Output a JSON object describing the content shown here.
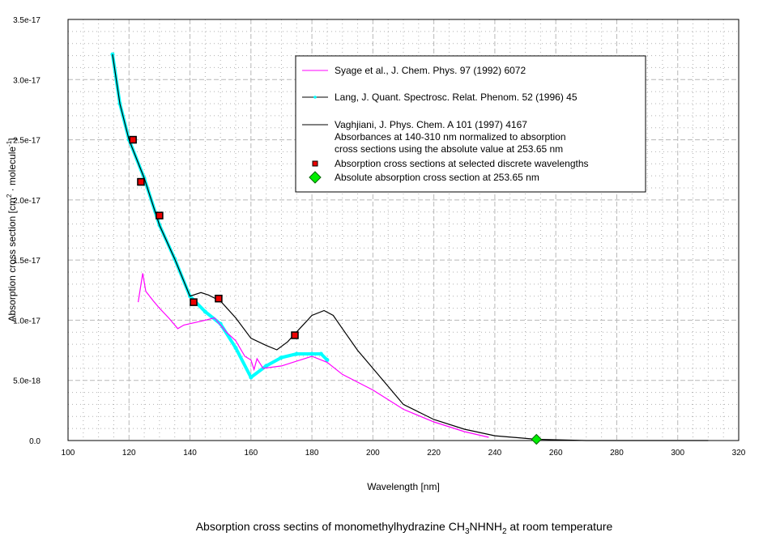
{
  "chart_data": {
    "type": "line",
    "title_parts": [
      "Absorption cross sectins of monomethylhydrazine CH",
      "3",
      "NHNH",
      "2",
      " at room temperature"
    ],
    "xlabel": "Wavelength [nm]",
    "ylabel_parts": [
      "Absorption cross section [cm",
      "2",
      " · molecule",
      "-1",
      "]"
    ],
    "xlim": [
      100,
      320
    ],
    "ylim": [
      0,
      3.5e-17
    ],
    "x_ticks": [
      100,
      120,
      140,
      160,
      180,
      200,
      220,
      240,
      260,
      280,
      300,
      320
    ],
    "y_ticks": [
      0,
      5e-18,
      1e-17,
      1.5e-17,
      2e-17,
      2.5e-17,
      3e-17,
      3.5e-17
    ],
    "y_tick_labels": [
      "0.0",
      "5.0e-18",
      "1.0e-17",
      "1.5e-17",
      "2.0e-17",
      "2.5e-17",
      "3.0e-17",
      "3.5e-17"
    ],
    "grid": true,
    "legend_position": "top-right",
    "series": [
      {
        "name": "Syage et al., J. Chem. Phys. 97 (1992) 6072",
        "color": "#ff00ff",
        "style": "line",
        "x": [
          123,
          124.5,
          125.5,
          128,
          130,
          133,
          136,
          138,
          145,
          148,
          152,
          155,
          158,
          160,
          161,
          162,
          164,
          170,
          175,
          180,
          185,
          190,
          200,
          210,
          220,
          230,
          238
        ],
        "y": [
          1.15e-17,
          1.39e-17,
          1.24e-17,
          1.16e-17,
          1.1e-17,
          1.02e-17,
          9.3e-18,
          9.6e-18,
          1e-17,
          1.02e-17,
          9e-18,
          8.3e-18,
          7e-18,
          6.7e-18,
          5.9e-18,
          6.8e-18,
          6e-18,
          6.2e-18,
          6.6e-18,
          7e-18,
          6.5e-18,
          5.5e-18,
          4.2e-18,
          2.6e-18,
          1.55e-18,
          7.4e-19,
          2.7e-19
        ]
      },
      {
        "name": "Vaghjiani, J. Phys. Chem. A 101 (1997) 4167",
        "extra_lines": [
          "Absorbances at 140-310 nm normalized to absorption",
          "cross sections using the absolute value at 253.65 nm"
        ],
        "color": "#000000",
        "style": "line",
        "x": [
          114.6,
          117,
          120,
          125,
          130,
          135,
          140,
          143.6,
          146,
          150,
          155,
          160,
          165,
          168.5,
          172,
          176,
          180,
          184,
          187,
          190,
          195,
          200,
          205,
          210,
          220,
          230,
          240,
          253.65,
          270,
          310
        ],
        "y": [
          3.21e-17,
          2.8e-17,
          2.5e-17,
          2.18e-17,
          1.79e-17,
          1.51e-17,
          1.2e-17,
          1.23e-17,
          1.21e-17,
          1.16e-17,
          1.02e-17,
          8.5e-18,
          7.9e-18,
          7.54e-18,
          8.2e-18,
          9.3e-18,
          1.04e-17,
          1.08e-17,
          1.04e-17,
          9.3e-18,
          7.5e-18,
          6e-18,
          4.5e-18,
          3e-18,
          1.75e-18,
          9.4e-19,
          4e-19,
          1e-19,
          0.0,
          0.0
        ]
      },
      {
        "name": "Lang, J. Quant. Spectrosc. Relat. Phenom. 52 (1996) 45",
        "color": "#00ffff",
        "style": "line-markers",
        "x": [
          114.6,
          117,
          120,
          125,
          130,
          135,
          140,
          145,
          150,
          155,
          160,
          165,
          170,
          175,
          180,
          183,
          185
        ],
        "y": [
          3.21e-17,
          2.8e-17,
          2.5e-17,
          2.18e-17,
          1.79e-17,
          1.51e-17,
          1.2e-17,
          1.07e-17,
          9.7e-18,
          7.7e-18,
          5.25e-18,
          6.2e-18,
          6.9e-18,
          7.2e-18,
          7.2e-18,
          7.2e-18,
          6.7e-18
        ]
      },
      {
        "name": "Absorption cross sections at selected discrete  wavelengths",
        "color": "#ee0000",
        "style": "square",
        "x": [
          121.3,
          123.9,
          130,
          141.2,
          149.4,
          174.4
        ],
        "y": [
          2.5e-17,
          2.15e-17,
          1.87e-17,
          1.15e-17,
          1.18e-17,
          8.75e-18
        ]
      },
      {
        "name": "Absolute absorption cross section at 253.65 nm",
        "color": "#00ee00",
        "style": "diamond",
        "x": [
          253.65
        ],
        "y": [
          1e-19
        ]
      }
    ]
  }
}
